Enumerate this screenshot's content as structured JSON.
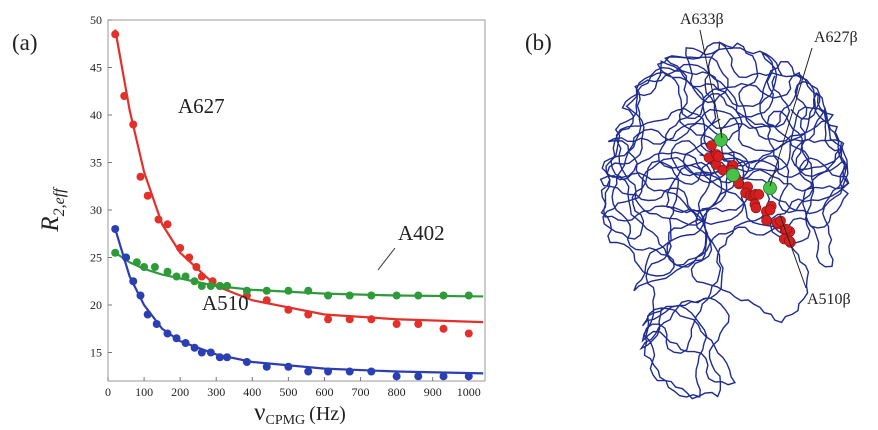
{
  "chart_data": {
    "type": "scatter",
    "panel_label": "(a)",
    "xlabel": "ν",
    "xlabel_sub": "CPMG",
    "xlabel_unit": "(Hz)",
    "ylabel": "R",
    "ylabel_sub": "2,eff",
    "xlim": [
      0,
      1045
    ],
    "xticks": [
      0,
      100,
      200,
      300,
      400,
      500,
      600,
      700,
      800,
      900,
      1000
    ],
    "ylim": [
      12,
      50
    ],
    "yticks": [
      15,
      20,
      25,
      30,
      35,
      40,
      45,
      50
    ],
    "grid": false,
    "series": [
      {
        "name": "A627",
        "color": "#e2302a",
        "x": [
          20,
          45,
          70,
          90,
          110,
          140,
          165,
          200,
          225,
          245,
          260,
          290,
          310,
          330,
          385,
          440,
          500,
          555,
          610,
          670,
          730,
          800,
          860,
          930,
          1000
        ],
        "values": [
          48.5,
          42,
          39,
          33.5,
          31.5,
          29,
          28.5,
          26,
          25,
          24,
          23,
          22.5,
          22,
          22,
          21,
          20.5,
          19.5,
          19,
          18.5,
          18.5,
          18.5,
          18,
          18,
          17.5,
          17
        ],
        "fit": {
          "x": [
            20,
            60,
            100,
            150,
            200,
            300,
            400,
            600,
            800,
            1040
          ],
          "values": [
            49,
            40.5,
            34,
            28.5,
            25.5,
            22,
            20.5,
            19,
            18.5,
            18.2
          ]
        }
      },
      {
        "name": "A402",
        "color": "#2e9a3a",
        "x": [
          20,
          50,
          80,
          100,
          130,
          165,
          190,
          215,
          240,
          260,
          285,
          310,
          330,
          385,
          440,
          500,
          555,
          610,
          670,
          730,
          800,
          860,
          930,
          1000
        ],
        "values": [
          25.5,
          25,
          24.5,
          24,
          24,
          23.5,
          23,
          23,
          22.5,
          22,
          22,
          22,
          22,
          21.5,
          21.5,
          21.5,
          21.5,
          21,
          21,
          21,
          21,
          21,
          21,
          21
        ],
        "fit": {
          "x": [
            20,
            60,
            100,
            150,
            200,
            300,
            400,
            600,
            800,
            1040
          ],
          "values": [
            25.5,
            24.5,
            23.8,
            23.2,
            22.8,
            22,
            21.6,
            21.2,
            21,
            20.9
          ]
        }
      },
      {
        "name": "A510",
        "color": "#2b3fb2",
        "x": [
          20,
          50,
          70,
          90,
          110,
          135,
          165,
          190,
          215,
          240,
          260,
          285,
          310,
          330,
          385,
          440,
          500,
          555,
          610,
          670,
          730,
          800,
          860,
          930,
          1000
        ],
        "values": [
          28,
          25,
          22.5,
          21,
          19,
          18,
          17,
          16.5,
          16,
          15.5,
          15,
          15,
          14.5,
          14.5,
          14,
          13.5,
          13.5,
          13,
          13,
          13,
          13,
          12.5,
          12.5,
          12.5,
          12.5
        ],
        "fit": {
          "x": [
            20,
            60,
            100,
            150,
            200,
            300,
            400,
            600,
            800,
            1040
          ],
          "values": [
            28,
            23,
            20,
            17.5,
            16.2,
            14.8,
            14,
            13.3,
            13,
            12.8
          ]
        }
      }
    ]
  },
  "structure_panel": {
    "panel_label": "(b)",
    "labels": [
      "A633β",
      "A627β",
      "A510β"
    ]
  }
}
